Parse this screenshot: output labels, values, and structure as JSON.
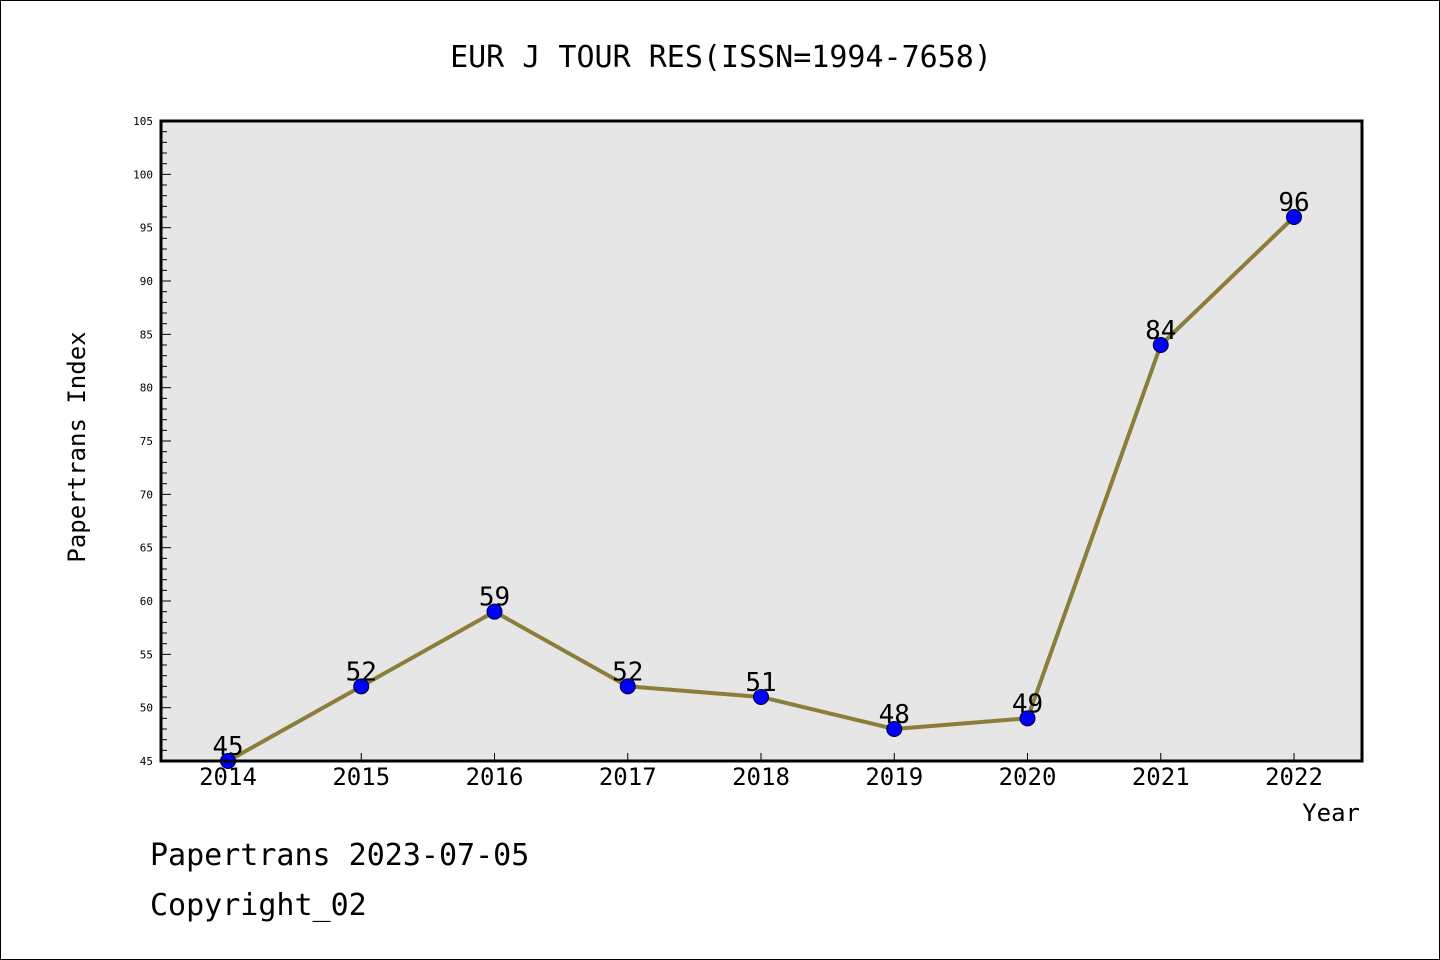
{
  "chart_data": {
    "type": "line",
    "title": "EUR J TOUR RES(ISSN=1994-7658)",
    "xlabel": "Year",
    "ylabel": "Papertrans Index",
    "categories": [
      "2014",
      "2015",
      "2016",
      "2017",
      "2018",
      "2019",
      "2020",
      "2021",
      "2022"
    ],
    "series": [
      {
        "values": [
          45,
          52,
          59,
          52,
          51,
          48,
          49,
          84,
          96
        ]
      }
    ],
    "data_labels": [
      "45",
      "52",
      "59",
      "52",
      "51",
      "48",
      "49",
      "84",
      "96"
    ],
    "ylim": [
      45,
      105
    ],
    "y_ticks": [
      "45",
      "50",
      "55",
      "60",
      "65",
      "70",
      "75",
      "80",
      "85",
      "90",
      "95",
      "100",
      "105"
    ],
    "y_minor_step": 1,
    "grid": false,
    "legend": "none",
    "colors": {
      "line": "#8b7d3a",
      "marker": "#0000ff",
      "plot_background": "#e6e6e6",
      "frame": "#000000"
    }
  },
  "footer": {
    "line1": "Papertrans 2023-07-05",
    "line2": "Copyright_02"
  }
}
